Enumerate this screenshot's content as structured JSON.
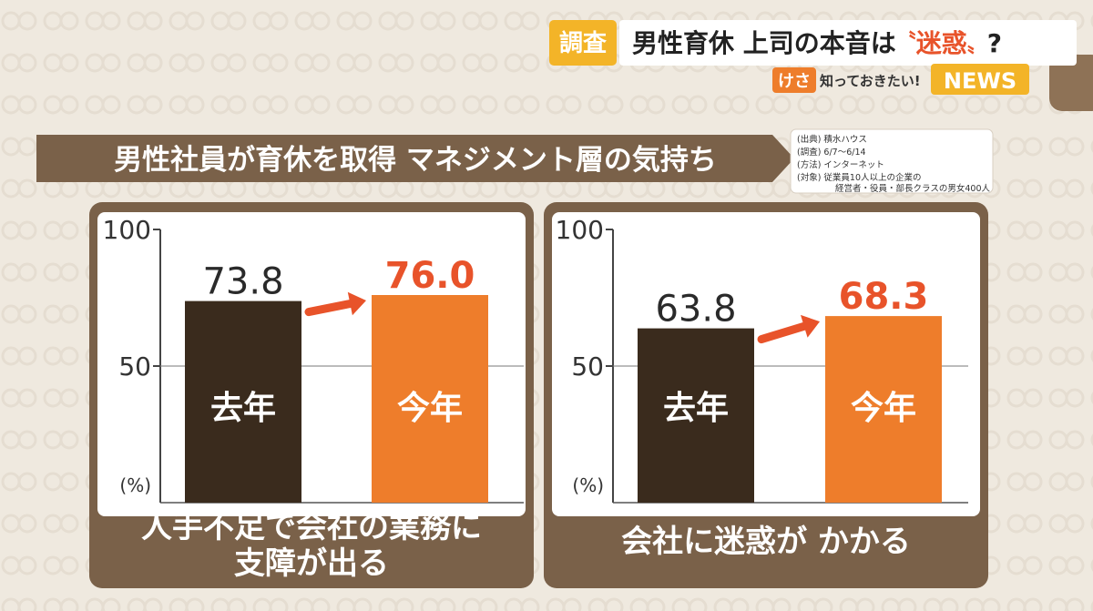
{
  "colors": {
    "background": "#efe9df",
    "pattern": "#e3dbd0",
    "brown": "#3a2b1d",
    "frame": "#7a6149",
    "orange": "#ee7d2b",
    "orange_text": "#e8532a",
    "banner_yellow": "#f3b428",
    "white": "#ffffff",
    "text_dark": "#2a2a2a"
  },
  "header": {
    "tag": "調査",
    "headline_main": "男性育休 上司の本音は",
    "headline_quoted": "迷惑",
    "quote_open": "〝",
    "quote_close": "〟",
    "headline_tail": "?",
    "brand_badge": "けさ",
    "brand_tagline": "知っておきたい!",
    "brand_news": "NEWS"
  },
  "title": "男性社員が育休を取得 マネジメント層の気持ち",
  "source_note": [
    "(出典) 積水ハウス",
    "(調査) 6/7〜6/14",
    "(方法) インターネット",
    "(対象) 従業員10人以上の企業の",
    "経営者・役員・部長クラスの男女400人"
  ],
  "chart_data": [
    {
      "type": "bar",
      "caption": [
        "人手不足で会社の業務に",
        "支障が出る"
      ],
      "categories": [
        "去年",
        "今年"
      ],
      "values": [
        73.8,
        76.0
      ],
      "value_labels": [
        "73.8",
        "76.0"
      ],
      "y_ticks": [
        "100",
        "50"
      ],
      "y_tick_values": [
        100,
        50
      ],
      "ylim": [
        0,
        100
      ],
      "unit_label": "(%)",
      "grid": true,
      "bar_colors": [
        "#3a2b1d",
        "#ee7d2b"
      ],
      "label_colors": [
        "#2a2a2a",
        "#e8532a"
      ]
    },
    {
      "type": "bar",
      "caption": [
        "会社に迷惑が かかる"
      ],
      "categories": [
        "去年",
        "今年"
      ],
      "values": [
        63.8,
        68.3
      ],
      "value_labels": [
        "63.8",
        "68.3"
      ],
      "y_ticks": [
        "100",
        "50"
      ],
      "y_tick_values": [
        100,
        50
      ],
      "ylim": [
        0,
        100
      ],
      "unit_label": "(%)",
      "grid": true,
      "bar_colors": [
        "#3a2b1d",
        "#ee7d2b"
      ],
      "label_colors": [
        "#2a2a2a",
        "#e8532a"
      ]
    }
  ]
}
